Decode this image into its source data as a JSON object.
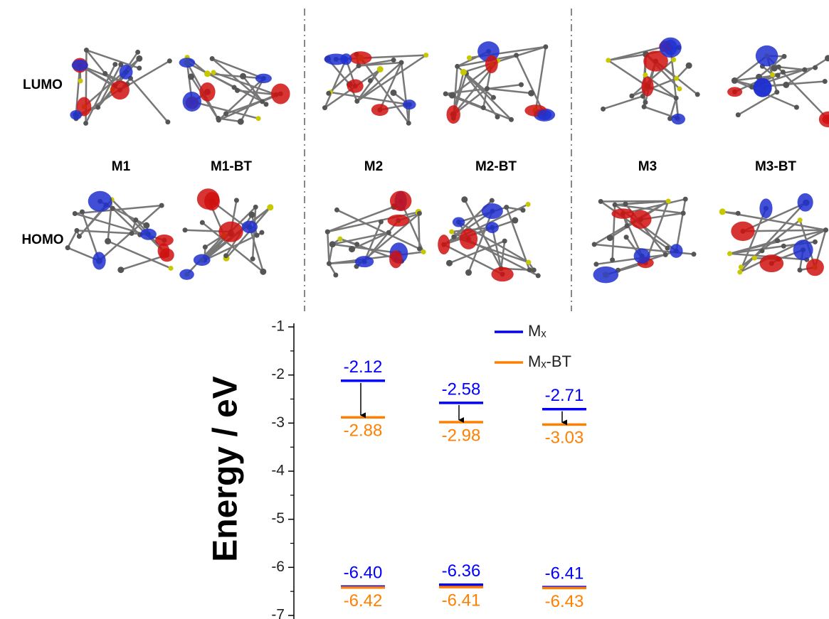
{
  "panel": {
    "rows": [
      "LUMO",
      "HOMO"
    ],
    "molecules": [
      "M1",
      "M1-BT",
      "M2",
      "M2-BT",
      "M3",
      "M3-BT"
    ]
  },
  "chart_data": {
    "type": "energy-levels",
    "y_label": "Energy / eV",
    "categories": [
      null,
      null,
      null
    ],
    "ylim": [
      -7,
      -1
    ],
    "yticks": [
      -1,
      -2,
      -3,
      -4,
      -5,
      -6,
      -7
    ],
    "legend": "upper right",
    "series": [
      {
        "name": "Mₓ",
        "color": "#0000ff",
        "lumo": [
          -2.12,
          -2.58,
          -2.71
        ],
        "homo": [
          -6.4,
          -6.36,
          -6.41
        ],
        "homo_labels": [
          "-6.40",
          "-6.36",
          "-6.41"
        ]
      },
      {
        "name": "Mₓ-BT",
        "color": "#ff8000",
        "lumo": [
          -2.88,
          -2.98,
          -3.03
        ],
        "homo": [
          -6.42,
          -6.41,
          -6.43
        ]
      }
    ]
  }
}
